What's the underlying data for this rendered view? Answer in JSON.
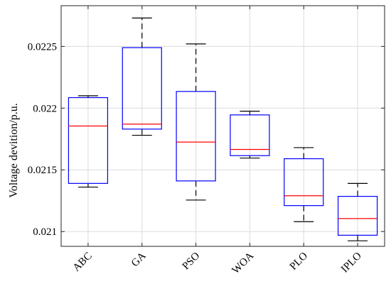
{
  "chart_data": {
    "type": "boxplot",
    "ylabel": "Voltage devition/p.u.",
    "xlabel": "",
    "ylim": [
      0.02088,
      0.02283
    ],
    "yticks": [
      0.021,
      0.0215,
      0.022,
      0.0225
    ],
    "ytick_labels": [
      "0.021",
      "0.0215",
      "0.022",
      "0.0225"
    ],
    "grid": true,
    "categories": [
      "ABC",
      "GA",
      "PSO",
      "WOA",
      "PLO",
      "IPLO"
    ],
    "boxes": [
      {
        "label": "ABC",
        "whisker_low": 0.02136,
        "q1": 0.02139,
        "median": 0.021855,
        "q3": 0.022085,
        "whisker_high": 0.0221
      },
      {
        "label": "GA",
        "whisker_low": 0.02178,
        "q1": 0.02183,
        "median": 0.02187,
        "q3": 0.02249,
        "whisker_high": 0.02273
      },
      {
        "label": "PSO",
        "whisker_low": 0.021255,
        "q1": 0.02141,
        "median": 0.021725,
        "q3": 0.022135,
        "whisker_high": 0.02252
      },
      {
        "label": "WOA",
        "whisker_low": 0.021595,
        "q1": 0.021615,
        "median": 0.021665,
        "q3": 0.021945,
        "whisker_high": 0.021975
      },
      {
        "label": "PLO",
        "whisker_low": 0.02108,
        "q1": 0.02121,
        "median": 0.02129,
        "q3": 0.02159,
        "whisker_high": 0.02168
      },
      {
        "label": "IPLO",
        "whisker_low": 0.020925,
        "q1": 0.02097,
        "median": 0.021105,
        "q3": 0.021285,
        "whisker_high": 0.02139
      }
    ],
    "colors": {
      "box": "#0000ff",
      "median": "#ff0000",
      "whisker": "#000000",
      "grid": "#dcdcdc",
      "axes": "#262626"
    }
  }
}
